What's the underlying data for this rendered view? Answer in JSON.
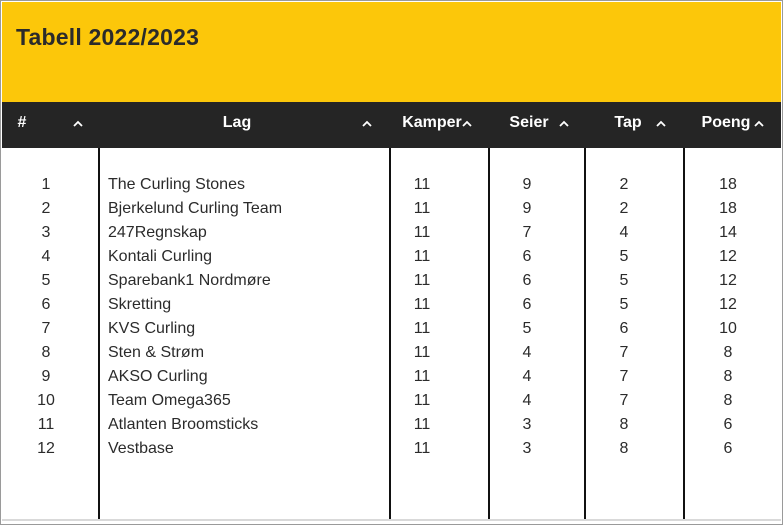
{
  "title": "Tabell 2022/2023",
  "colors": {
    "banner": "#fcc70a",
    "header_bg": "#252525",
    "header_text": "#ffffff"
  },
  "columns": [
    {
      "key": "pos",
      "label": "#",
      "sort_icon": "chevron-up-icon"
    },
    {
      "key": "team",
      "label": "Lag",
      "sort_icon": "chevron-up-icon"
    },
    {
      "key": "played",
      "label": "Kamper",
      "sort_icon": "chevron-up-icon"
    },
    {
      "key": "wins",
      "label": "Seier",
      "sort_icon": "chevron-up-icon"
    },
    {
      "key": "losses",
      "label": "Tap",
      "sort_icon": "chevron-up-icon"
    },
    {
      "key": "points",
      "label": "Poeng",
      "sort_icon": "chevron-up-icon"
    }
  ],
  "rows": [
    {
      "pos": "1",
      "team": "The Curling Stones",
      "played": "11",
      "wins": "9",
      "losses": "2",
      "points": "18"
    },
    {
      "pos": "2",
      "team": "Bjerkelund Curling Team",
      "played": "11",
      "wins": "9",
      "losses": "2",
      "points": "18"
    },
    {
      "pos": "3",
      "team": "247Regnskap",
      "played": "11",
      "wins": "7",
      "losses": "4",
      "points": "14"
    },
    {
      "pos": "4",
      "team": "Kontali Curling",
      "played": "11",
      "wins": "6",
      "losses": "5",
      "points": "12"
    },
    {
      "pos": "5",
      "team": "Sparebank1 Nordmøre",
      "played": "11",
      "wins": "6",
      "losses": "5",
      "points": "12"
    },
    {
      "pos": "6",
      "team": "Skretting",
      "played": "11",
      "wins": "6",
      "losses": "5",
      "points": "12"
    },
    {
      "pos": "7",
      "team": "KVS Curling",
      "played": "11",
      "wins": "5",
      "losses": "6",
      "points": "10"
    },
    {
      "pos": "8",
      "team": "Sten & Strøm",
      "played": "11",
      "wins": "4",
      "losses": "7",
      "points": "8"
    },
    {
      "pos": "9",
      "team": "AKSO Curling",
      "played": "11",
      "wins": "4",
      "losses": "7",
      "points": "8"
    },
    {
      "pos": "10",
      "team": "Team Omega365",
      "played": "11",
      "wins": "4",
      "losses": "7",
      "points": "8"
    },
    {
      "pos": "11",
      "team": "Atlanten Broomsticks",
      "played": "11",
      "wins": "3",
      "losses": "8",
      "points": "6"
    },
    {
      "pos": "12",
      "team": "Vestbase",
      "played": "11",
      "wins": "3",
      "losses": "8",
      "points": "6"
    }
  ]
}
